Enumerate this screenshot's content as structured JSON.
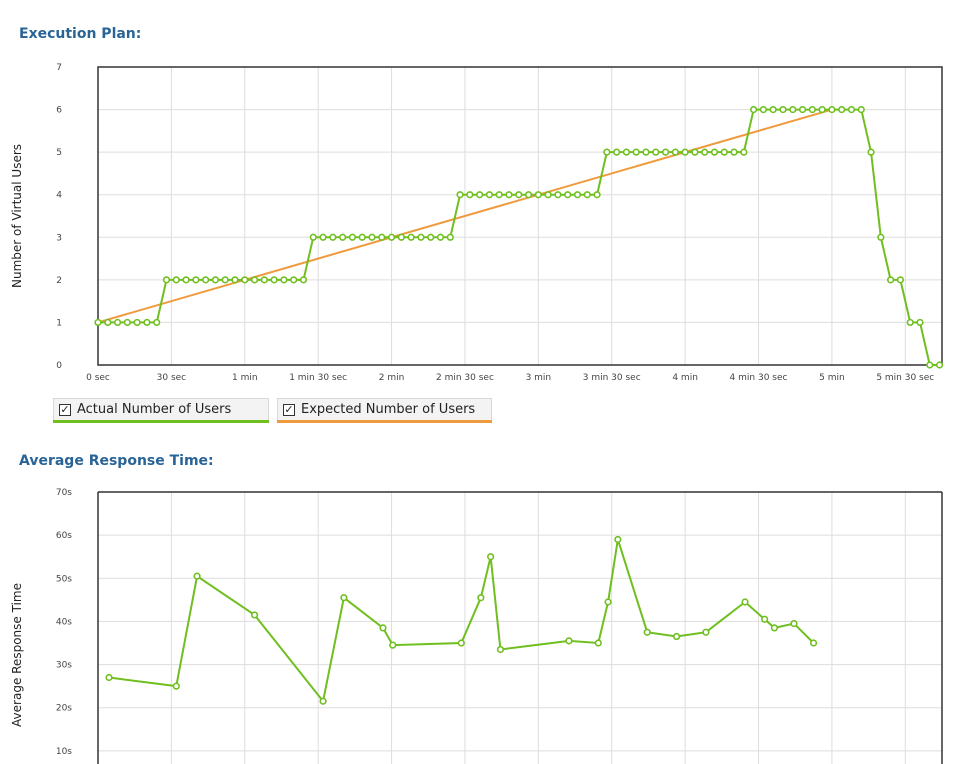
{
  "sections": {
    "execution_plan_title": "Execution Plan:",
    "response_time_title": "Average Response Time:"
  },
  "legend": {
    "actual_label": "Actual Number of Users",
    "expected_label": "Expected Number of Users",
    "actual_checked": true,
    "expected_checked": true,
    "check_glyph": "✓"
  },
  "colors": {
    "actual": "#6fbf1f",
    "expected": "#f09a3e",
    "title": "#2a6496",
    "grid": "#dddddd",
    "frame": "#333333"
  },
  "chart_data": [
    {
      "type": "line",
      "ylabel": "Number of Virtual Users",
      "xlim": [
        0,
        345
      ],
      "ylim": [
        0,
        7
      ],
      "x_ticks": [
        {
          "v": 0,
          "label": "0 sec"
        },
        {
          "v": 30,
          "label": "30 sec"
        },
        {
          "v": 60,
          "label": "1 min"
        },
        {
          "v": 90,
          "label": "1 min 30 sec"
        },
        {
          "v": 120,
          "label": "2 min"
        },
        {
          "v": 150,
          "label": "2 min 30 sec"
        },
        {
          "v": 180,
          "label": "3 min"
        },
        {
          "v": 210,
          "label": "3 min 30 sec"
        },
        {
          "v": 240,
          "label": "4 min"
        },
        {
          "v": 270,
          "label": "4 min 30 sec"
        },
        {
          "v": 300,
          "label": "5 min"
        },
        {
          "v": 330,
          "label": "5 min 30 sec"
        }
      ],
      "y_ticks": [
        {
          "v": 0,
          "label": "0"
        },
        {
          "v": 1,
          "label": "1"
        },
        {
          "v": 2,
          "label": "2"
        },
        {
          "v": 3,
          "label": "3"
        },
        {
          "v": 4,
          "label": "4"
        },
        {
          "v": 5,
          "label": "5"
        },
        {
          "v": 6,
          "label": "6"
        },
        {
          "v": 7,
          "label": "7"
        }
      ],
      "grid": true,
      "series": [
        {
          "name": "Actual Number of Users",
          "markers": true,
          "points": [
            [
              0,
              1
            ],
            [
              4,
              1
            ],
            [
              8,
              1
            ],
            [
              12,
              1
            ],
            [
              16,
              1
            ],
            [
              20,
              1
            ],
            [
              24,
              1
            ],
            [
              28,
              2
            ],
            [
              32,
              2
            ],
            [
              36,
              2
            ],
            [
              40,
              2
            ],
            [
              44,
              2
            ],
            [
              48,
              2
            ],
            [
              52,
              2
            ],
            [
              56,
              2
            ],
            [
              60,
              2
            ],
            [
              64,
              2
            ],
            [
              68,
              2
            ],
            [
              72,
              2
            ],
            [
              76,
              2
            ],
            [
              80,
              2
            ],
            [
              84,
              2
            ],
            [
              88,
              3
            ],
            [
              92,
              3
            ],
            [
              96,
              3
            ],
            [
              100,
              3
            ],
            [
              104,
              3
            ],
            [
              108,
              3
            ],
            [
              112,
              3
            ],
            [
              116,
              3
            ],
            [
              120,
              3
            ],
            [
              124,
              3
            ],
            [
              128,
              3
            ],
            [
              132,
              3
            ],
            [
              136,
              3
            ],
            [
              140,
              3
            ],
            [
              144,
              3
            ],
            [
              148,
              4
            ],
            [
              152,
              4
            ],
            [
              156,
              4
            ],
            [
              160,
              4
            ],
            [
              164,
              4
            ],
            [
              168,
              4
            ],
            [
              172,
              4
            ],
            [
              176,
              4
            ],
            [
              180,
              4
            ],
            [
              184,
              4
            ],
            [
              188,
              4
            ],
            [
              192,
              4
            ],
            [
              196,
              4
            ],
            [
              200,
              4
            ],
            [
              204,
              4
            ],
            [
              208,
              5
            ],
            [
              212,
              5
            ],
            [
              216,
              5
            ],
            [
              220,
              5
            ],
            [
              224,
              5
            ],
            [
              228,
              5
            ],
            [
              232,
              5
            ],
            [
              236,
              5
            ],
            [
              240,
              5
            ],
            [
              244,
              5
            ],
            [
              248,
              5
            ],
            [
              252,
              5
            ],
            [
              256,
              5
            ],
            [
              260,
              5
            ],
            [
              264,
              5
            ],
            [
              268,
              6
            ],
            [
              272,
              6
            ],
            [
              276,
              6
            ],
            [
              280,
              6
            ],
            [
              284,
              6
            ],
            [
              288,
              6
            ],
            [
              292,
              6
            ],
            [
              296,
              6
            ],
            [
              300,
              6
            ],
            [
              304,
              6
            ],
            [
              308,
              6
            ],
            [
              312,
              6
            ],
            [
              316,
              5
            ],
            [
              320,
              3
            ],
            [
              324,
              2
            ],
            [
              328,
              2
            ],
            [
              332,
              1
            ],
            [
              336,
              1
            ],
            [
              340,
              0
            ],
            [
              344,
              0
            ]
          ]
        },
        {
          "name": "Expected Number of Users",
          "markers": false,
          "points": [
            [
              0,
              1
            ],
            [
              300,
              6
            ]
          ]
        }
      ]
    },
    {
      "type": "line",
      "ylabel": "Average Response Time",
      "xlim": [
        0,
        345
      ],
      "ylim": [
        0,
        70
      ],
      "y_ticks": [
        {
          "v": 10,
          "label": "10s"
        },
        {
          "v": 20,
          "label": "20s"
        },
        {
          "v": 30,
          "label": "30s"
        },
        {
          "v": 40,
          "label": "40s"
        },
        {
          "v": 50,
          "label": "50s"
        },
        {
          "v": 60,
          "label": "60s"
        },
        {
          "v": 70,
          "label": "70s"
        }
      ],
      "x_grid": [
        30,
        60,
        90,
        120,
        150,
        180,
        210,
        240,
        270,
        300,
        330
      ],
      "grid": true,
      "series": [
        {
          "name": "Actual Number of Users",
          "markers": true,
          "points": [
            [
              4.5,
              27
            ],
            [
              32,
              25
            ],
            [
              40.5,
              50.5
            ],
            [
              64,
              41.5
            ],
            [
              92,
              21.5
            ],
            [
              100.5,
              45.5
            ],
            [
              116.5,
              38.5
            ],
            [
              120.5,
              34.5
            ],
            [
              148.5,
              35
            ],
            [
              156.5,
              45.5
            ],
            [
              160.5,
              55
            ],
            [
              164.5,
              33.5
            ],
            [
              192.5,
              35.5
            ],
            [
              204.5,
              35
            ],
            [
              208.5,
              44.5
            ],
            [
              212.5,
              59
            ],
            [
              224.5,
              37.5
            ],
            [
              236.5,
              36.5
            ],
            [
              248.5,
              37.5
            ],
            [
              264.5,
              44.5
            ],
            [
              272.5,
              40.5
            ],
            [
              276.5,
              38.5
            ],
            [
              284.5,
              39.5
            ],
            [
              292.5,
              35
            ]
          ]
        }
      ]
    }
  ]
}
